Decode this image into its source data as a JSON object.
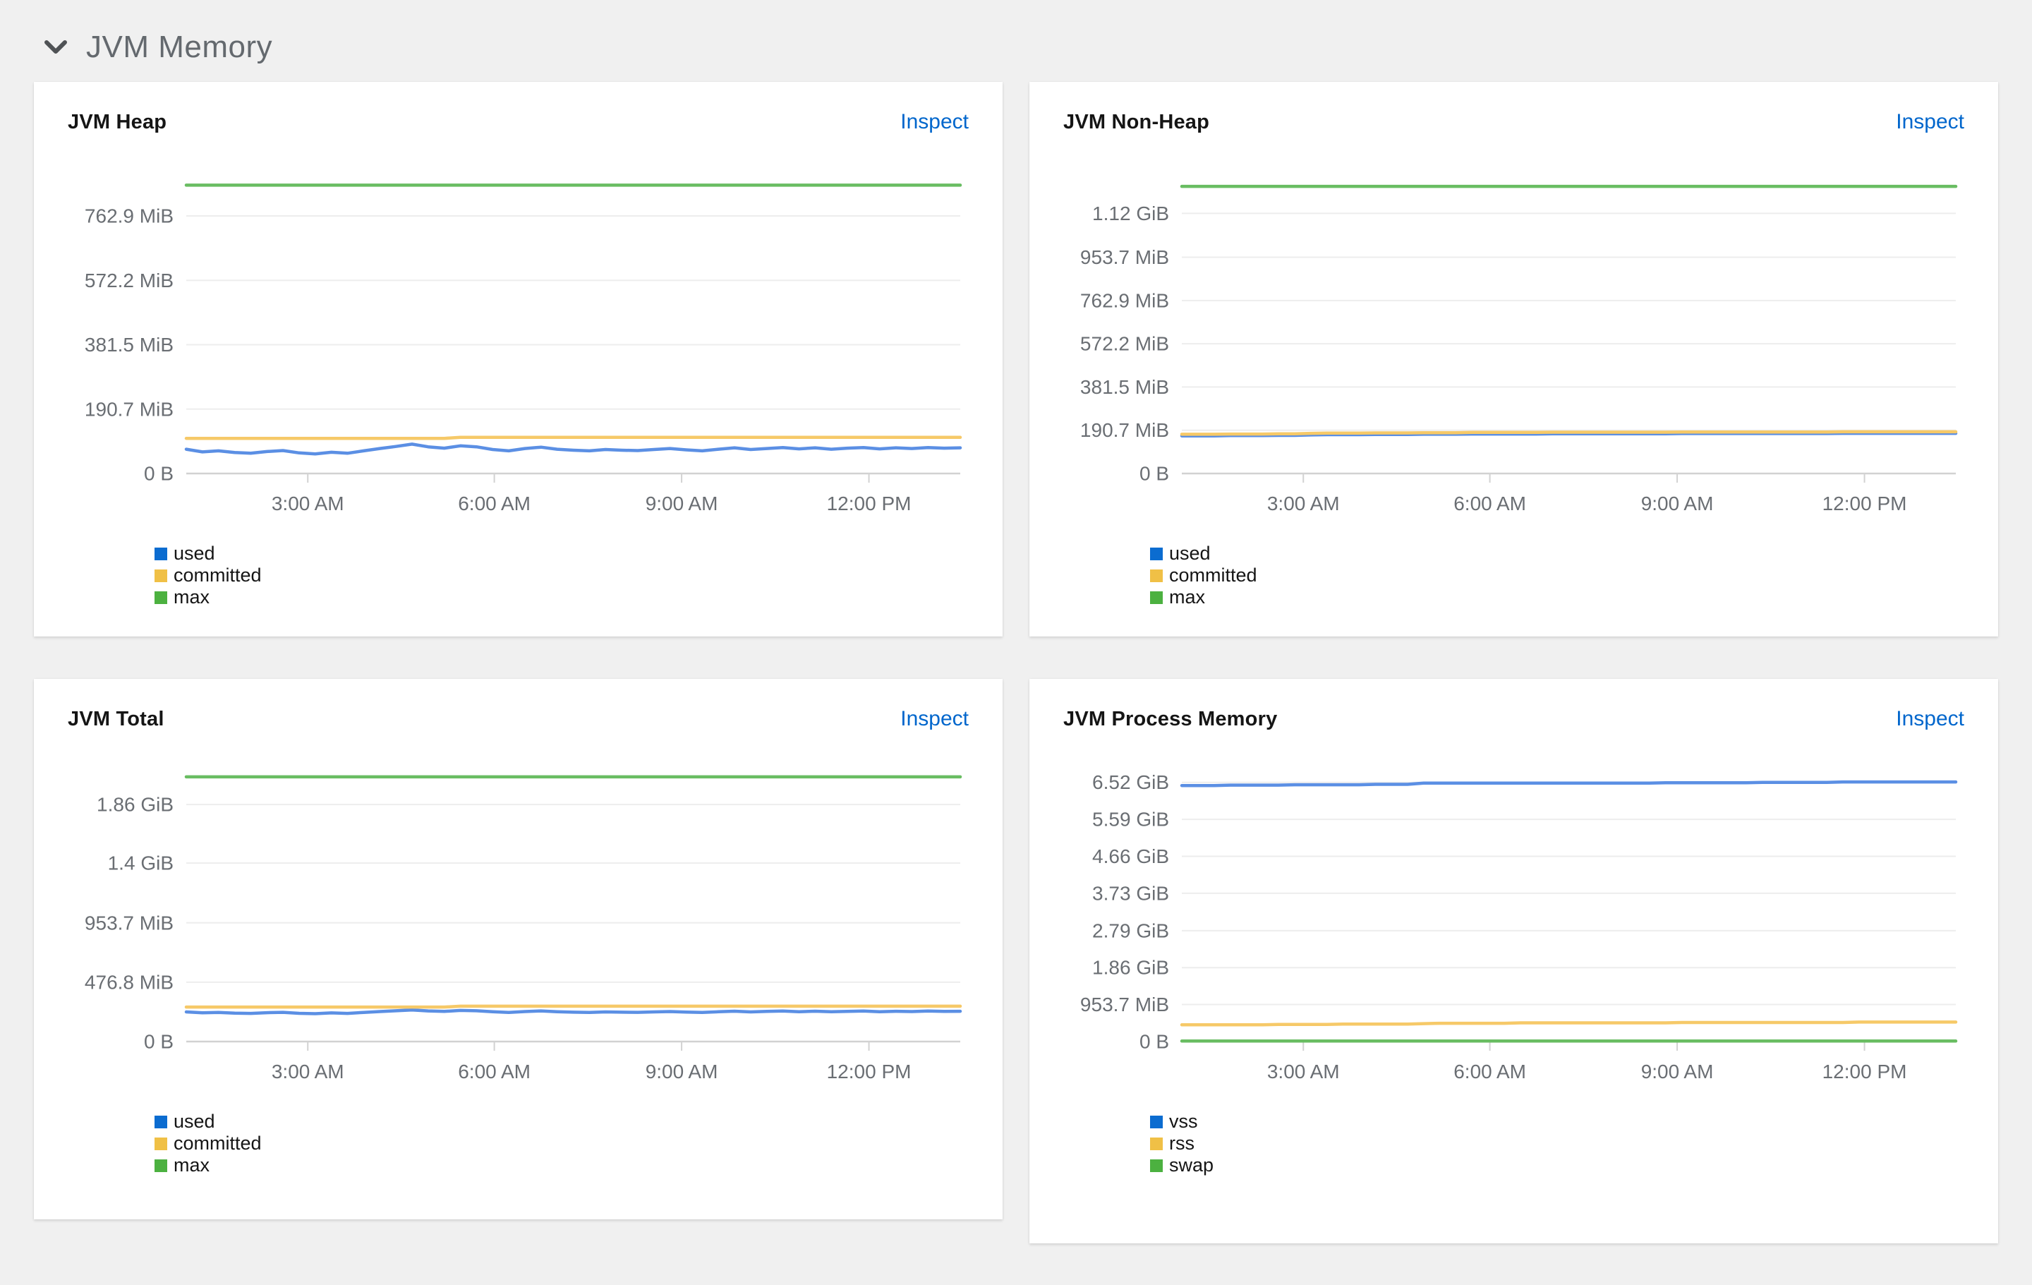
{
  "page": {
    "section_title": "JVM Memory"
  },
  "colors": {
    "link_blue": "#0066CC",
    "page_bg": "#F0F0F0",
    "card_bg": "#FFFFFF",
    "axis_text": "#6A6E73",
    "grid_line": "#EDEDED",
    "axis_line": "#D2D2D2",
    "series_blue": "#0066CC",
    "series_gold": "#F0C046",
    "series_green": "#4CB140"
  },
  "chart_data": [
    {
      "type": "line",
      "title": "JVM Heap",
      "action": "Inspect",
      "unit": "MiB",
      "y_max": 880,
      "y_ticks": [
        {
          "v": 0,
          "label": "0 B"
        },
        {
          "v": 190.7,
          "label": "190.7 MiB"
        },
        {
          "v": 381.5,
          "label": "381.5 MiB"
        },
        {
          "v": 572.2,
          "label": "572.2 MiB"
        },
        {
          "v": 762.9,
          "label": "762.9 MiB"
        }
      ],
      "x_ticks": [
        {
          "f": 0.157,
          "label": "3:00 AM"
        },
        {
          "f": 0.398,
          "label": "6:00 AM"
        },
        {
          "f": 0.64,
          "label": "9:00 AM"
        },
        {
          "f": 0.882,
          "label": "12:00 PM"
        }
      ],
      "series": [
        {
          "name": "used",
          "swatch": "#0B6CD0",
          "line": "#5B8FE4",
          "values": [
            72,
            64,
            67,
            62,
            60,
            65,
            68,
            61,
            58,
            63,
            60,
            67,
            74,
            80,
            87,
            79,
            75,
            82,
            79,
            71,
            67,
            74,
            78,
            72,
            69,
            67,
            71,
            69,
            68,
            71,
            74,
            70,
            67,
            72,
            76,
            71,
            74,
            77,
            73,
            76,
            72,
            75,
            77,
            73,
            76,
            74,
            77,
            75,
            76
          ]
        },
        {
          "name": "committed",
          "swatch": "#F0C046",
          "line": "#F6C968",
          "values": [
            104,
            104,
            104,
            104,
            104,
            104,
            104,
            104,
            104,
            104,
            104,
            104,
            104,
            104,
            104,
            104,
            104,
            107,
            107,
            107,
            107,
            107,
            107,
            107,
            107,
            107,
            107,
            107,
            107,
            107,
            107,
            107,
            107,
            107,
            107,
            107,
            107,
            107,
            107,
            107,
            107,
            107,
            107,
            107,
            107,
            107,
            107,
            107,
            107
          ]
        },
        {
          "name": "max",
          "swatch": "#4CB140",
          "line": "#69BD62",
          "values": 854
        }
      ],
      "legend": [
        {
          "label": "used"
        },
        {
          "label": "committed"
        },
        {
          "label": "max"
        }
      ]
    },
    {
      "type": "line",
      "title": "JVM Non-Heap",
      "action": "Inspect",
      "unit": "MiB",
      "y_max": 1310,
      "y_ticks": [
        {
          "v": 0,
          "label": "0 B"
        },
        {
          "v": 190.7,
          "label": "190.7 MiB"
        },
        {
          "v": 381.5,
          "label": "381.5 MiB"
        },
        {
          "v": 572.2,
          "label": "572.2 MiB"
        },
        {
          "v": 762.9,
          "label": "762.9 MiB"
        },
        {
          "v": 953.7,
          "label": "953.7 MiB"
        },
        {
          "v": 1146.9,
          "label": "1.12 GiB"
        }
      ],
      "x_ticks": [
        {
          "f": 0.157,
          "label": "3:00 AM"
        },
        {
          "f": 0.398,
          "label": "6:00 AM"
        },
        {
          "f": 0.64,
          "label": "9:00 AM"
        },
        {
          "f": 0.882,
          "label": "12:00 PM"
        }
      ],
      "series": [
        {
          "name": "used",
          "swatch": "#0B6CD0",
          "line": "#5B8FE4",
          "values": [
            166,
            166,
            166,
            167,
            167,
            167,
            168,
            168,
            170,
            171,
            171,
            171,
            172,
            172,
            172,
            173,
            173,
            173,
            174,
            174,
            174,
            174,
            174,
            175,
            175,
            175,
            175,
            175,
            175,
            175,
            175,
            176,
            176,
            176,
            176,
            176,
            176,
            176,
            176,
            176,
            176,
            177,
            177,
            177,
            177,
            177,
            177,
            177,
            177
          ]
        },
        {
          "name": "committed",
          "swatch": "#F0C046",
          "line": "#F6C968",
          "values": [
            173,
            173,
            173,
            174,
            174,
            174,
            175,
            175,
            177,
            178,
            178,
            178,
            179,
            179,
            179,
            180,
            180,
            180,
            181,
            181,
            181,
            181,
            181,
            182,
            182,
            182,
            182,
            182,
            182,
            182,
            182,
            183,
            183,
            183,
            183,
            183,
            183,
            183,
            183,
            183,
            183,
            184,
            184,
            184,
            184,
            184,
            184,
            184,
            184
          ]
        },
        {
          "name": "max",
          "swatch": "#4CB140",
          "line": "#69BD62",
          "values": 1266
        }
      ],
      "legend": [
        {
          "label": "used"
        },
        {
          "label": "committed"
        },
        {
          "label": "max"
        }
      ]
    },
    {
      "type": "line",
      "title": "JVM Total",
      "action": "Inspect",
      "unit": "MiB",
      "y_max": 2370,
      "y_ticks": [
        {
          "v": 0,
          "label": "0 B"
        },
        {
          "v": 476.8,
          "label": "476.8 MiB"
        },
        {
          "v": 953.7,
          "label": "953.7 MiB"
        },
        {
          "v": 1433.6,
          "label": "1.4 GiB"
        },
        {
          "v": 1904.6,
          "label": "1.86 GiB"
        }
      ],
      "x_ticks": [
        {
          "f": 0.157,
          "label": "3:00 AM"
        },
        {
          "f": 0.398,
          "label": "6:00 AM"
        },
        {
          "f": 0.64,
          "label": "9:00 AM"
        },
        {
          "f": 0.882,
          "label": "12:00 PM"
        }
      ],
      "series": [
        {
          "name": "used",
          "swatch": "#0B6CD0",
          "line": "#5B8FE4",
          "values": [
            238,
            231,
            234,
            228,
            226,
            232,
            235,
            227,
            224,
            230,
            226,
            234,
            241,
            247,
            254,
            246,
            242,
            250,
            247,
            239,
            234,
            241,
            246,
            240,
            236,
            234,
            238,
            236,
            235,
            238,
            241,
            237,
            234,
            239,
            244,
            238,
            242,
            245,
            240,
            244,
            239,
            242,
            245,
            240,
            243,
            241,
            245,
            242,
            243
          ]
        },
        {
          "name": "committed",
          "swatch": "#F0C046",
          "line": "#F6C968",
          "values": [
            277,
            277,
            277,
            277,
            277,
            277,
            277,
            277,
            277,
            277,
            277,
            277,
            277,
            277,
            277,
            277,
            277,
            284,
            284,
            284,
            284,
            284,
            284,
            284,
            284,
            284,
            284,
            284,
            284,
            284,
            284,
            284,
            284,
            284,
            284,
            284,
            284,
            284,
            284,
            284,
            284,
            284,
            284,
            284,
            284,
            284,
            284,
            284,
            284
          ]
        },
        {
          "name": "max",
          "swatch": "#4CB140",
          "line": "#69BD62",
          "values": 2127
        }
      ],
      "legend": [
        {
          "label": "used"
        },
        {
          "label": "committed"
        },
        {
          "label": "max"
        }
      ]
    },
    {
      "type": "line",
      "title": "JVM Process Memory",
      "action": "Inspect",
      "unit": "GiB",
      "y_max": 7.42,
      "y_ticks": [
        {
          "v": 0,
          "label": "0 B"
        },
        {
          "v": 0.9313,
          "label": "953.7 MiB"
        },
        {
          "v": 1.86,
          "label": "1.86 GiB"
        },
        {
          "v": 2.79,
          "label": "2.79 GiB"
        },
        {
          "v": 3.73,
          "label": "3.73 GiB"
        },
        {
          "v": 4.66,
          "label": "4.66 GiB"
        },
        {
          "v": 5.59,
          "label": "5.59 GiB"
        },
        {
          "v": 6.52,
          "label": "6.52 GiB"
        }
      ],
      "x_ticks": [
        {
          "f": 0.157,
          "label": "3:00 AM"
        },
        {
          "f": 0.398,
          "label": "6:00 AM"
        },
        {
          "f": 0.64,
          "label": "9:00 AM"
        },
        {
          "f": 0.882,
          "label": "12:00 PM"
        }
      ],
      "series": [
        {
          "name": "vss",
          "swatch": "#0B6CD0",
          "line": "#5B8FE4",
          "values": [
            6.44,
            6.44,
            6.44,
            6.45,
            6.45,
            6.45,
            6.45,
            6.46,
            6.46,
            6.46,
            6.46,
            6.46,
            6.47,
            6.47,
            6.47,
            6.5,
            6.5,
            6.5,
            6.5,
            6.5,
            6.5,
            6.5,
            6.5,
            6.5,
            6.5,
            6.5,
            6.5,
            6.5,
            6.5,
            6.5,
            6.51,
            6.51,
            6.51,
            6.51,
            6.51,
            6.51,
            6.52,
            6.52,
            6.52,
            6.52,
            6.52,
            6.53,
            6.53,
            6.53,
            6.53,
            6.53,
            6.53,
            6.53,
            6.53
          ]
        },
        {
          "name": "rss",
          "swatch": "#F0C046",
          "line": "#F6C968",
          "values": [
            0.42,
            0.42,
            0.42,
            0.42,
            0.42,
            0.42,
            0.43,
            0.43,
            0.43,
            0.43,
            0.44,
            0.44,
            0.44,
            0.44,
            0.44,
            0.45,
            0.46,
            0.46,
            0.46,
            0.46,
            0.46,
            0.47,
            0.47,
            0.47,
            0.47,
            0.47,
            0.47,
            0.47,
            0.47,
            0.47,
            0.47,
            0.48,
            0.48,
            0.48,
            0.48,
            0.48,
            0.48,
            0.48,
            0.48,
            0.48,
            0.48,
            0.48,
            0.49,
            0.49,
            0.49,
            0.49,
            0.49,
            0.49,
            0.49
          ]
        },
        {
          "name": "swap",
          "swatch": "#4CB140",
          "line": "#69BD62",
          "values": 0.012
        }
      ],
      "legend": [
        {
          "label": "vss"
        },
        {
          "label": "rss"
        },
        {
          "label": "swap"
        }
      ]
    }
  ]
}
